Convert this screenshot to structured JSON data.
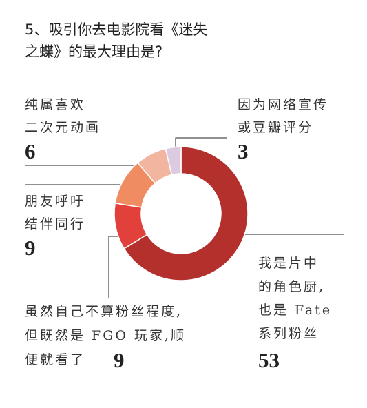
{
  "chart_data": {
    "type": "donut",
    "title": [
      "5、吸引你去电影院看《迷失",
      "之蝶》的最大理由是?"
    ],
    "categories": [
      [
        "我是片中",
        "的角色厨,",
        "也是 Fate",
        "系列粉丝"
      ],
      [
        "虽然自己不算粉丝程度,",
        "但既然是 FGO 玩家,顺",
        "便就看了"
      ],
      [
        "朋友呼吁",
        "结伴同行"
      ],
      [
        "纯属喜欢",
        "二次元动画"
      ],
      [
        "因为网络宣传",
        "或豆瓣评分"
      ]
    ],
    "values": [
      53,
      9,
      9,
      6,
      3
    ],
    "colors": [
      "#b3302c",
      "#e2403a",
      "#f08c62",
      "#f2b6a0",
      "#dccbe0"
    ]
  }
}
